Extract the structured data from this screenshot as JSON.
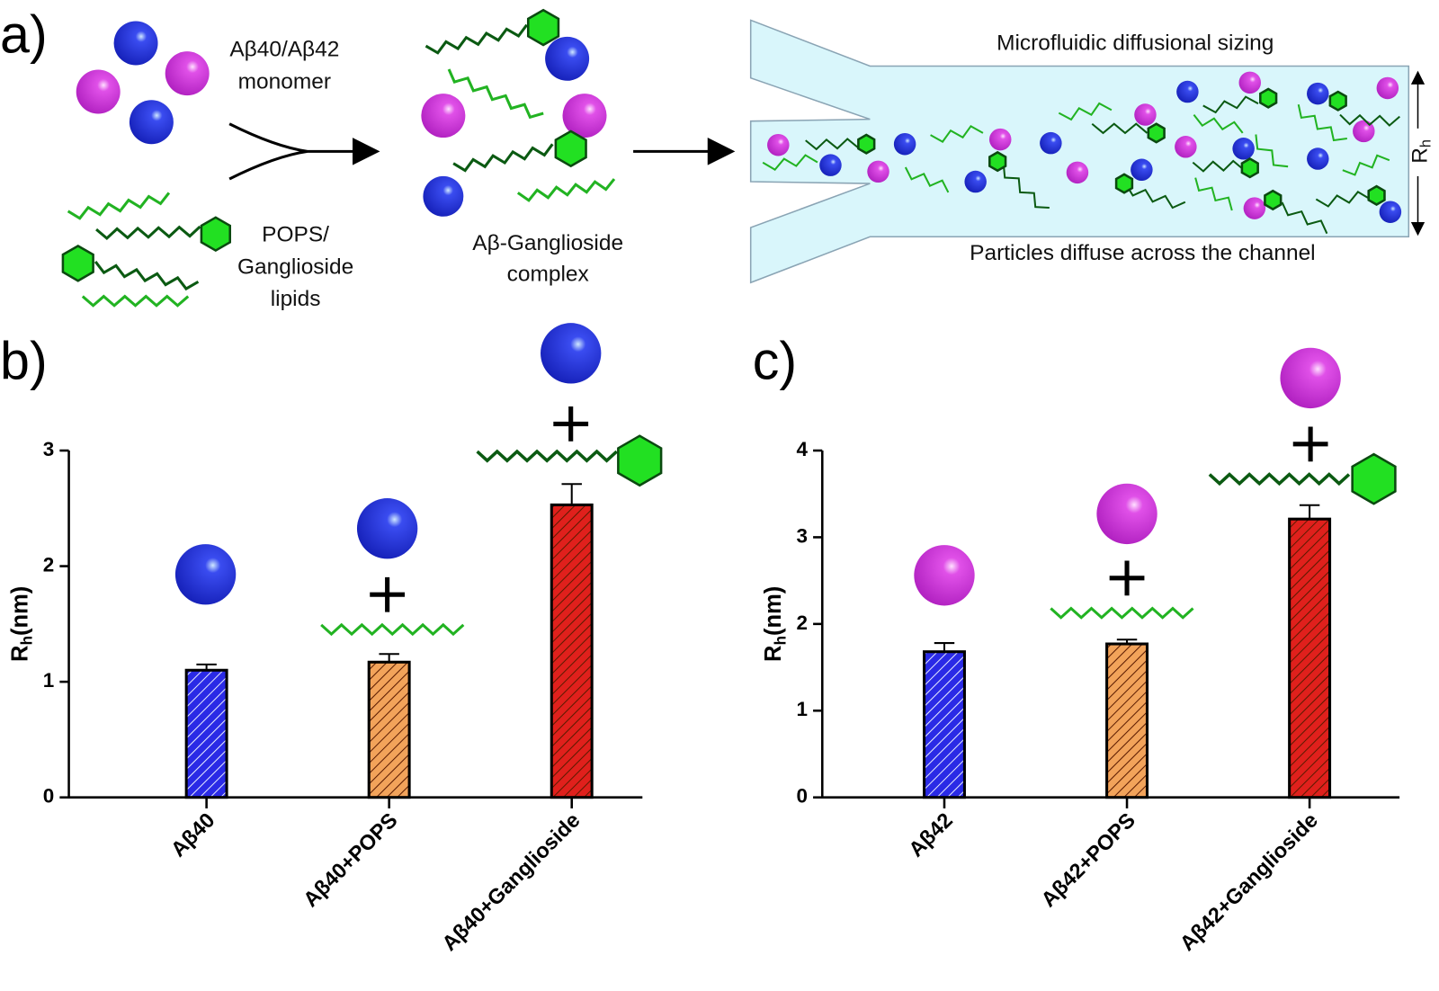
{
  "diagram": {
    "panel_label": "a)",
    "monomer_line1": "Aβ40/Aβ42",
    "monomer_line2": "monomer",
    "lipid_line1": "POPS/",
    "lipid_line2": "Ganglioside",
    "lipid_line3": "lipids",
    "complex_line1": "Aβ-Ganglioside",
    "complex_line2": "complex",
    "channel_title": "Microfluidic diffusional sizing",
    "channel_caption": "Particles diffuse across the channel",
    "radius_label": {
      "main": "R",
      "sub": "h"
    }
  },
  "chart_data": [
    {
      "type": "bar",
      "panel_label": "b)",
      "categories": [
        "Aβ40",
        "Aβ40+POPS",
        "Aβ40+Ganglioside"
      ],
      "values": [
        1.1,
        1.17,
        2.53
      ],
      "errors": [
        0.05,
        0.07,
        0.18
      ],
      "colors": [
        "#2a2ae6",
        "#f2a35a",
        "#e0201c"
      ],
      "ylim": [
        0,
        3
      ],
      "yticks": [
        0,
        1,
        2,
        3
      ],
      "y_label": {
        "main": "R",
        "sub": "h",
        "unit": "(nm)"
      }
    },
    {
      "type": "bar",
      "panel_label": "c)",
      "categories": [
        "Aβ42",
        "Aβ42+POPS",
        "Aβ42+Ganglioside"
      ],
      "values": [
        1.68,
        1.77,
        3.21
      ],
      "errors": [
        0.1,
        0.05,
        0.16
      ],
      "colors": [
        "#2a2ae6",
        "#f2a35a",
        "#e0201c"
      ],
      "ylim": [
        0,
        4
      ],
      "yticks": [
        0,
        1,
        2,
        3,
        4
      ],
      "y_label": {
        "main": "R",
        "sub": "h",
        "unit": "(nm)"
      }
    }
  ]
}
